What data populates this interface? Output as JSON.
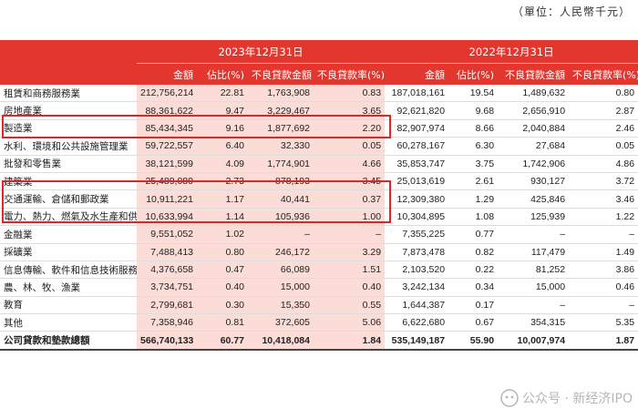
{
  "unit_note": "（單位：人民幣千元）",
  "periods": [
    "2023年12月31日",
    "2022年12月31日"
  ],
  "columns": [
    "金額",
    "佔比(%)",
    "不良貸款金額",
    "不良貸款率(%)",
    "金額",
    "佔比(%)",
    "不良貸款金額",
    "不良貸款率(%)"
  ],
  "rows": [
    {
      "name": "租賃和商務服務業",
      "v": [
        "212,756,214",
        "22.81",
        "1,763,908",
        "0.83",
        "187,018,161",
        "19.54",
        "1,489,632",
        "0.80"
      ]
    },
    {
      "name": "房地產業",
      "v": [
        "88,361,622",
        "9.47",
        "3,229,467",
        "3.65",
        "92,621,820",
        "9.68",
        "2,656,910",
        "2.87"
      ]
    },
    {
      "name": "製造業",
      "v": [
        "85,434,345",
        "9.16",
        "1,877,692",
        "2.20",
        "82,907,974",
        "8.66",
        "2,040,884",
        "2.46"
      ]
    },
    {
      "name": "水利、環境和公共設施管理業",
      "v": [
        "59,722,557",
        "6.40",
        "32,330",
        "0.05",
        "60,278,167",
        "6.30",
        "27,684",
        "0.05"
      ]
    },
    {
      "name": "批發和零售業",
      "v": [
        "38,121,599",
        "4.09",
        "1,774,901",
        "4.66",
        "35,853,747",
        "3.75",
        "1,742,906",
        "4.86"
      ]
    },
    {
      "name": "建築業",
      "v": [
        "25,489,080",
        "2.73",
        "878,193",
        "3.45",
        "25,013,619",
        "2.61",
        "930,127",
        "3.72"
      ]
    },
    {
      "name": "交通運輸、倉儲和郵政業",
      "v": [
        "10,911,221",
        "1.17",
        "40,441",
        "0.37",
        "12,309,380",
        "1.29",
        "425,846",
        "3.46"
      ]
    },
    {
      "name": "電力、熱力、燃氣及水生產和供應業",
      "v": [
        "10,633,994",
        "1.14",
        "105,936",
        "1.00",
        "10,304,895",
        "1.08",
        "125,939",
        "1.22"
      ]
    },
    {
      "name": "金融業",
      "v": [
        "9,551,052",
        "1.02",
        "–",
        "–",
        "7,355,225",
        "0.77",
        "–",
        "–"
      ]
    },
    {
      "name": "採礦業",
      "v": [
        "7,488,413",
        "0.80",
        "246,172",
        "3.29",
        "7,873,478",
        "0.82",
        "117,479",
        "1.49"
      ]
    },
    {
      "name": "信息傳輸、軟件和信息技術服務業",
      "v": [
        "4,376,658",
        "0.47",
        "66,089",
        "1.51",
        "2,103,520",
        "0.22",
        "81,252",
        "3.86"
      ]
    },
    {
      "name": "農、林、牧、漁業",
      "v": [
        "3,734,751",
        "0.40",
        "15,000",
        "0.40",
        "3,242,134",
        "0.34",
        "15,000",
        "0.46"
      ]
    },
    {
      "name": "教育",
      "v": [
        "2,799,681",
        "0.30",
        "15,350",
        "0.55",
        "1,644,387",
        "0.17",
        "–",
        "–"
      ]
    },
    {
      "name": "其他",
      "v": [
        "7,358,946",
        "0.81",
        "372,605",
        "5.06",
        "6,622,680",
        "0.67",
        "354,315",
        "5.35"
      ]
    }
  ],
  "total": {
    "name": "公司貸款和墊款總額",
    "v": [
      "566,740,133",
      "60.77",
      "10,418,084",
      "1.84",
      "535,149,187",
      "55.90",
      "10,007,974",
      "1.87"
    ]
  },
  "watermark": "公众号 · 新经济IPO"
}
